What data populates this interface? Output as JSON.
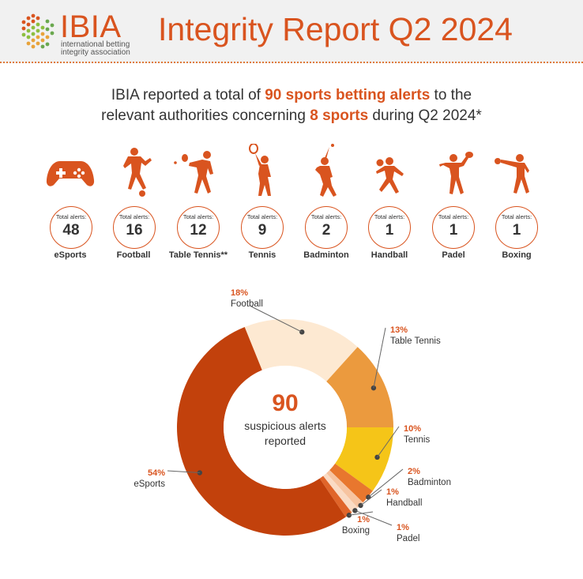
{
  "header": {
    "logo_text": "IBIA",
    "logo_subtitle_line1": "international betting",
    "logo_subtitle_line2": "integrity association",
    "title": "Integrity Report Q2 2024"
  },
  "intro": {
    "part1": "IBIA reported a total of ",
    "highlight1": "90 sports betting alerts",
    "part2": " to the",
    "part3": "relevant authorities concerning ",
    "highlight2": "8 sports",
    "part4": " during Q2 2024*"
  },
  "alert_label": "Total alerts:",
  "sports": [
    {
      "name": "eSports",
      "alerts": "48",
      "icon": "gamepad-icon"
    },
    {
      "name": "Football",
      "alerts": "16",
      "icon": "football-player-icon"
    },
    {
      "name": "Table Tennis**",
      "alerts": "12",
      "icon": "table-tennis-player-icon"
    },
    {
      "name": "Tennis",
      "alerts": "9",
      "icon": "tennis-player-icon"
    },
    {
      "name": "Badminton",
      "alerts": "2",
      "icon": "badminton-player-icon"
    },
    {
      "name": "Handball",
      "alerts": "1",
      "icon": "handball-player-icon"
    },
    {
      "name": "Padel",
      "alerts": "1",
      "icon": "padel-player-icon"
    },
    {
      "name": "Boxing",
      "alerts": "1",
      "icon": "boxer-icon"
    }
  ],
  "colors": {
    "brand": "#d9541f",
    "esports": "#c2410c",
    "football": "#fde9d2",
    "table_tennis": "#eb9a3e",
    "tennis": "#f5c518",
    "badminton": "#e8772e",
    "handball": "#f7c4a0",
    "padel": "#fadbc4",
    "boxing": "#e0652a"
  },
  "chart_data": {
    "type": "pie",
    "center_value": "90",
    "center_line1": "suspicious alerts",
    "center_line2": "reported",
    "slices": [
      {
        "label": "Football",
        "pct_label": "18%",
        "value": 16,
        "color": "#fde9d2"
      },
      {
        "label": "Table Tennis",
        "pct_label": "13%",
        "value": 12,
        "color": "#eb9a3e"
      },
      {
        "label": "Tennis",
        "pct_label": "10%",
        "value": 9,
        "color": "#f5c518"
      },
      {
        "label": "Badminton",
        "pct_label": "2%",
        "value": 2,
        "color": "#e8772e"
      },
      {
        "label": "Handball",
        "pct_label": "1%",
        "value": 1,
        "color": "#f7c4a0"
      },
      {
        "label": "Padel",
        "pct_label": "1%",
        "value": 1,
        "color": "#fadbc4"
      },
      {
        "label": "Boxing",
        "pct_label": "1%",
        "value": 1,
        "color": "#e0652a"
      },
      {
        "label": "eSports",
        "pct_label": "54%",
        "value": 48,
        "color": "#c2410c"
      }
    ]
  }
}
